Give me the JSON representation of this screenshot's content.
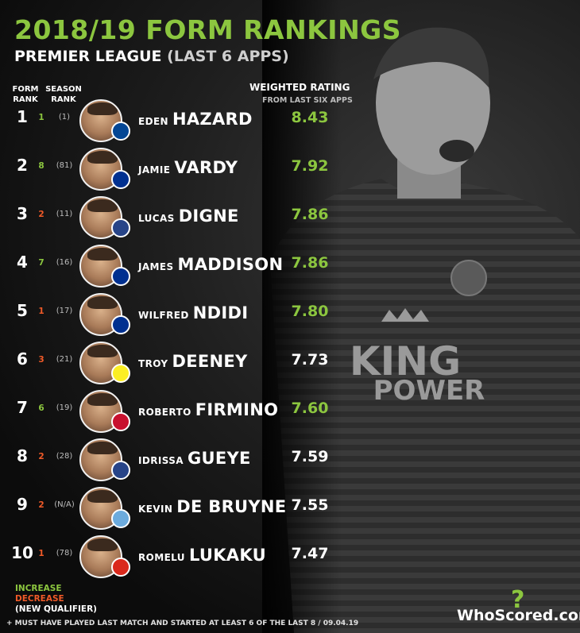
{
  "header": {
    "title": "2018/19 FORM RANKINGS",
    "subtitle_main": "PREMIER LEAGUE",
    "subtitle_paren": "(LAST 6 APPS)"
  },
  "columns": {
    "form_rank_l1": "FORM",
    "form_rank_l2": "RANK",
    "season_rank_l1": "SEASON",
    "season_rank_l2": "RANK",
    "weighted": "WEIGHTED RATING",
    "weighted_sub": "FROM LAST SIX APPS"
  },
  "rows": [
    {
      "rank": "1",
      "change": "1",
      "dir": "up",
      "season": "(1)",
      "first": "EDEN",
      "last": "HAZARD",
      "rating": "8.43",
      "rating_color": "#8cc63f",
      "club": "chelsea"
    },
    {
      "rank": "2",
      "change": "8",
      "dir": "up",
      "season": "(81)",
      "first": "JAMIE",
      "last": "VARDY",
      "rating": "7.92",
      "rating_color": "#8cc63f",
      "club": "leicester"
    },
    {
      "rank": "3",
      "change": "2",
      "dir": "down",
      "season": "(11)",
      "first": "LUCAS",
      "last": "DIGNE",
      "rating": "7.86",
      "rating_color": "#8cc63f",
      "club": "everton"
    },
    {
      "rank": "4",
      "change": "7",
      "dir": "up",
      "season": "(16)",
      "first": "JAMES",
      "last": "MADDISON",
      "rating": "7.86",
      "rating_color": "#8cc63f",
      "club": "leicester"
    },
    {
      "rank": "5",
      "change": "1",
      "dir": "down",
      "season": "(17)",
      "first": "WILFRED",
      "last": "NDIDI",
      "rating": "7.80",
      "rating_color": "#8cc63f",
      "club": "leicester"
    },
    {
      "rank": "6",
      "change": "3",
      "dir": "down",
      "season": "(21)",
      "first": "TROY",
      "last": "DEENEY",
      "rating": "7.73",
      "rating_color": "#ffffff",
      "club": "watford"
    },
    {
      "rank": "7",
      "change": "6",
      "dir": "up",
      "season": "(19)",
      "first": "ROBERTO",
      "last": "FIRMINO",
      "rating": "7.60",
      "rating_color": "#8cc63f",
      "club": "liverpool"
    },
    {
      "rank": "8",
      "change": "2",
      "dir": "down",
      "season": "(28)",
      "first": "IDRISSA",
      "last": "GUEYE",
      "rating": "7.59",
      "rating_color": "#ffffff",
      "club": "everton"
    },
    {
      "rank": "9",
      "change": "2",
      "dir": "down",
      "season": "(N/A)",
      "first": "KEVIN",
      "last": "DE BRUYNE",
      "rating": "7.55",
      "rating_color": "#ffffff",
      "club": "mancity"
    },
    {
      "rank": "10",
      "change": "1",
      "dir": "down",
      "season": "(78)",
      "first": "ROMELU",
      "last": "LUKAKU",
      "rating": "7.47",
      "rating_color": "#ffffff",
      "club": "manutd"
    }
  ],
  "club_colors": {
    "chelsea": "#034694",
    "leicester": "#003090",
    "everton": "#274488",
    "watford": "#fbee23",
    "liverpool": "#c8102e",
    "mancity": "#6cabdd",
    "manutd": "#da291c"
  },
  "legend": {
    "increase": "INCREASE",
    "decrease": "DECREASE",
    "new_qualifier": "(NEW QUALIFIER)"
  },
  "footnote": "+ MUST HAVE PLAYED LAST MATCH AND STARTED AT LEAST 6 OF THE LAST 8 / 09.04.19",
  "brand": "WhoScored.com",
  "background": {
    "shirt_line1": "KING",
    "shirt_line2": "POWER"
  },
  "colors": {
    "accent": "#8cc63f",
    "decrease": "#f05a28"
  }
}
